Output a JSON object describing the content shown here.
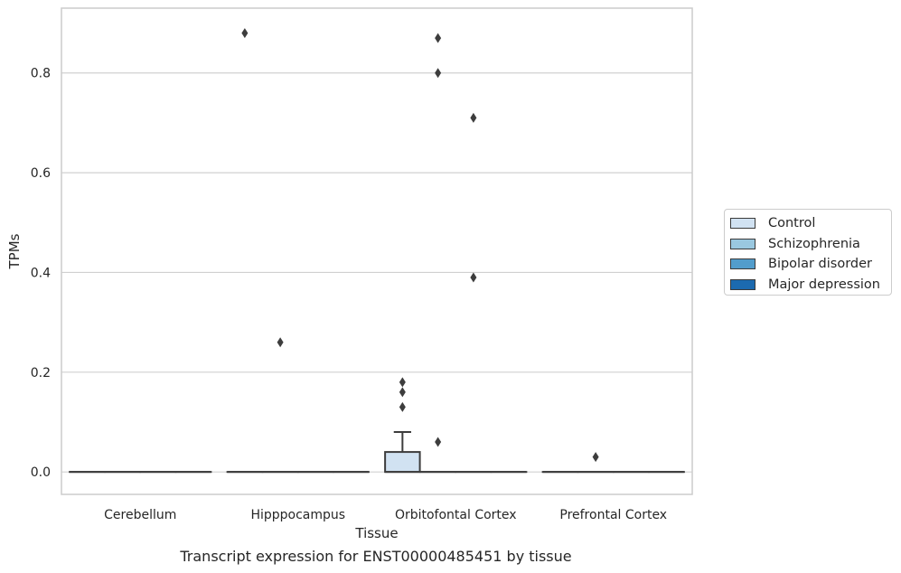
{
  "caption": "Transcript expression for ENST00000485451 by tissue",
  "chart_data": {
    "type": "box",
    "xlabel": "Tissue",
    "ylabel": "TPMs",
    "ylim": [
      -0.045,
      0.93
    ],
    "yticks": [
      "0.0",
      "0.2",
      "0.4",
      "0.6",
      "0.8"
    ],
    "ytick_values": [
      0.0,
      0.2,
      0.4,
      0.6,
      0.8
    ],
    "grid": "horizontal",
    "legend_position": "right",
    "categories": [
      "Cerebellum",
      "Hipppocampus",
      "Orbitofontal Cortex",
      "Prefrontal Cortex"
    ],
    "series": [
      {
        "name": "Control",
        "color": "#d1e2f2",
        "boxes": [
          {
            "q1": 0,
            "median": 0,
            "q3": 0,
            "whisker_low": 0,
            "whisker_high": 0,
            "outliers": []
          },
          {
            "q1": 0,
            "median": 0,
            "q3": 0,
            "whisker_low": 0,
            "whisker_high": 0,
            "outliers": [
              0.88
            ]
          },
          {
            "q1": 0,
            "median": 0,
            "q3": 0.04,
            "whisker_low": 0,
            "whisker_high": 0.08,
            "outliers": [
              0.13,
              0.16,
              0.18
            ]
          },
          {
            "q1": 0,
            "median": 0,
            "q3": 0,
            "whisker_low": 0,
            "whisker_high": 0,
            "outliers": []
          }
        ]
      },
      {
        "name": "Schizophrenia",
        "color": "#9ac8e0",
        "boxes": [
          {
            "q1": 0,
            "median": 0,
            "q3": 0,
            "whisker_low": 0,
            "whisker_high": 0,
            "outliers": []
          },
          {
            "q1": 0,
            "median": 0,
            "q3": 0,
            "whisker_low": 0,
            "whisker_high": 0,
            "outliers": [
              0.26
            ]
          },
          {
            "q1": 0,
            "median": 0,
            "q3": 0,
            "whisker_low": 0,
            "whisker_high": 0,
            "outliers": [
              0.8,
              0.87,
              0.06
            ]
          },
          {
            "q1": 0,
            "median": 0,
            "q3": 0,
            "whisker_low": 0,
            "whisker_high": 0,
            "outliers": [
              0.03
            ]
          }
        ]
      },
      {
        "name": "Bipolar disorder",
        "color": "#529dcc",
        "boxes": [
          {
            "q1": 0,
            "median": 0,
            "q3": 0,
            "whisker_low": 0,
            "whisker_high": 0,
            "outliers": []
          },
          {
            "q1": 0,
            "median": 0,
            "q3": 0,
            "whisker_low": 0,
            "whisker_high": 0,
            "outliers": []
          },
          {
            "q1": 0,
            "median": 0,
            "q3": 0,
            "whisker_low": 0,
            "whisker_high": 0,
            "outliers": [
              0.39,
              0.71
            ]
          },
          {
            "q1": 0,
            "median": 0,
            "q3": 0,
            "whisker_low": 0,
            "whisker_high": 0,
            "outliers": []
          }
        ]
      },
      {
        "name": "Major depression",
        "color": "#1c6aaf",
        "boxes": [
          {
            "q1": 0,
            "median": 0,
            "q3": 0,
            "whisker_low": 0,
            "whisker_high": 0,
            "outliers": []
          },
          {
            "q1": 0,
            "median": 0,
            "q3": 0,
            "whisker_low": 0,
            "whisker_high": 0,
            "outliers": []
          },
          {
            "q1": 0,
            "median": 0,
            "q3": 0,
            "whisker_low": 0,
            "whisker_high": 0,
            "outliers": []
          },
          {
            "q1": 0,
            "median": 0,
            "q3": 0,
            "whisker_low": 0,
            "whisker_high": 0,
            "outliers": []
          }
        ]
      }
    ]
  }
}
